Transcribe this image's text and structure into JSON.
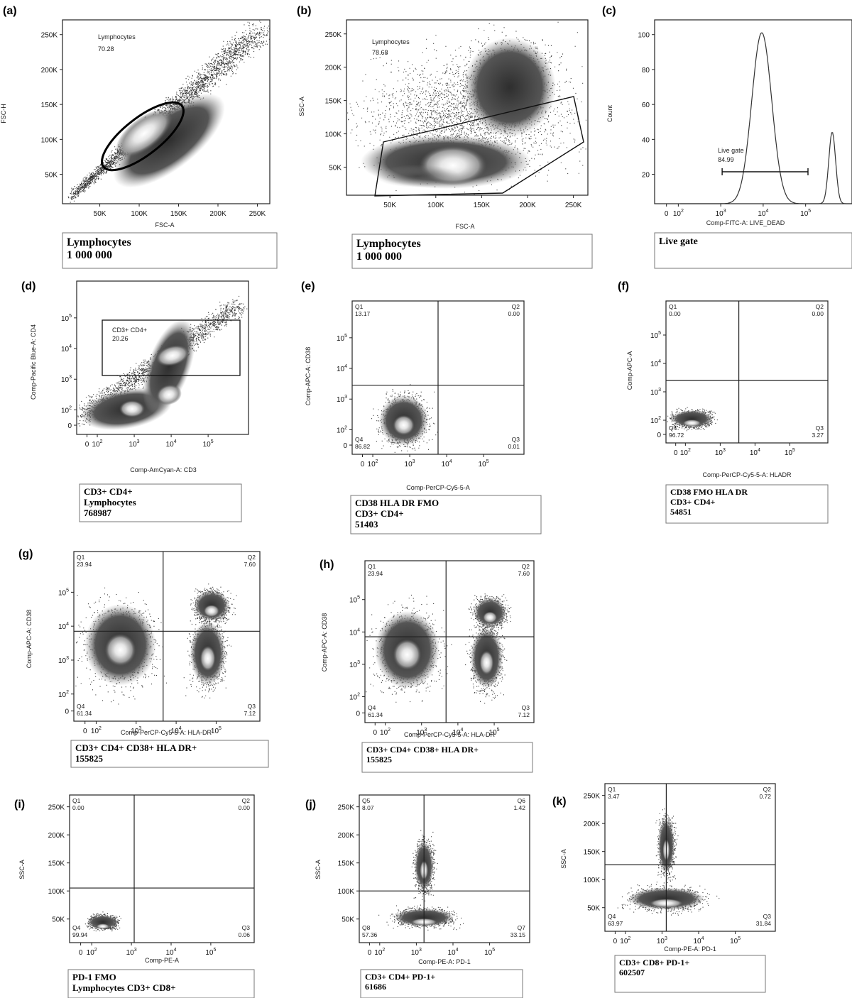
{
  "chart_data": [
    {
      "id": "a",
      "letter": "(a)",
      "type": "scatter",
      "xlabel": "FSC-A",
      "ylabel": "FSC-H",
      "xlim": [
        0,
        262144
      ],
      "ylim": [
        0,
        262144
      ],
      "xticks": [
        "50K",
        "100K",
        "150K",
        "200K",
        "250K"
      ],
      "yticks": [
        "50K",
        "100K",
        "150K",
        "200K",
        "250K"
      ],
      "gate": {
        "kind": "ellipse",
        "name": "Lymphocytes",
        "percent": "70.28"
      },
      "caption": [
        "Lymphocytes",
        "1 000 000"
      ]
    },
    {
      "id": "b",
      "letter": "(b)",
      "type": "scatter",
      "xlabel": "FSC-A",
      "ylabel": "SSC-A",
      "xlim": [
        0,
        262144
      ],
      "ylim": [
        0,
        262144
      ],
      "xticks": [
        "50K",
        "100K",
        "150K",
        "200K",
        "250K"
      ],
      "yticks": [
        "50K",
        "100K",
        "150K",
        "200K",
        "250K"
      ],
      "gate": {
        "kind": "polygon",
        "name": "Lymphocytes",
        "percent": "78.68"
      },
      "caption": [
        "Lymphocytes",
        "1 000 000"
      ]
    },
    {
      "id": "c",
      "letter": "(c)",
      "type": "line",
      "xlabel": "Comp-FITC-A: LIVE_DEAD",
      "ylabel": "Count",
      "ylim": [
        0,
        100
      ],
      "xticks": [
        "0",
        "10^2",
        "10^3",
        "10^4",
        "10^5"
      ],
      "yticks": [
        "20",
        "40",
        "60",
        "80",
        "100"
      ],
      "gate": {
        "kind": "range",
        "name": "Live gate",
        "percent": "84.99"
      },
      "peaks": [
        {
          "x_log": 3.55,
          "y": 93
        },
        {
          "x_log": 5.15,
          "y": 39
        }
      ],
      "caption": [
        "Live gate"
      ]
    },
    {
      "id": "d",
      "letter": "(d)",
      "type": "scatter",
      "xlabel": "Comp-AmCyan-A: CD3",
      "ylabel": "Comp-Pacific Blue-A: CD4",
      "xticks": [
        "0",
        "10^2",
        "10^3",
        "10^4",
        "10^5"
      ],
      "yticks": [
        "0",
        "10^2",
        "10^3",
        "10^4",
        "10^5"
      ],
      "gate": {
        "kind": "rect",
        "name": "CD3+ CD4+",
        "percent": "20.26"
      },
      "caption": [
        "CD3+ CD4+",
        "Lymphocytes",
        "768987"
      ]
    },
    {
      "id": "e",
      "letter": "(e)",
      "type": "scatter",
      "xlabel": "Comp-PerCP-Cy5-5-A",
      "ylabel": "Comp-APC-A: CD38",
      "xticks": [
        "0",
        "10^2",
        "10^3",
        "10^4",
        "10^5"
      ],
      "yticks": [
        "0",
        "10^2",
        "10^3",
        "10^4",
        "10^5"
      ],
      "quadrants": {
        "Q1": "13.17",
        "Q2": "0.00",
        "Q3": "0.01",
        "Q4": "86.82"
      },
      "caption": [
        "CD38 HLA DR FMO",
        "CD3+ CD4+",
        "51403"
      ]
    },
    {
      "id": "f",
      "letter": "(f)",
      "type": "scatter",
      "xlabel": "Comp-PerCP-Cy5-5-A: HLADR",
      "ylabel": "Comp-APC-A",
      "xticks": [
        "0",
        "10^2",
        "10^3",
        "10^4",
        "10^5"
      ],
      "yticks": [
        "0",
        "10^2",
        "10^3",
        "10^4",
        "10^5"
      ],
      "quadrants": {
        "Q1": "0.00",
        "Q2": "0.00",
        "Q3": "3.27",
        "Q4": "96.72"
      },
      "caption": [
        "CD38 FMO HLA DR",
        "CD3+ CD4+",
        "54851"
      ]
    },
    {
      "id": "g",
      "letter": "(g)",
      "type": "scatter",
      "xlabel": "Comp-PerCP-Cy5-5-A: HLA-DR",
      "ylabel": "Comp-APC-A: CD38",
      "xticks": [
        "0",
        "10^2",
        "10^3",
        "10^4",
        "10^5"
      ],
      "yticks": [
        "0",
        "10^2",
        "10^3",
        "10^4",
        "10^5"
      ],
      "quadrants": {
        "Q1": "23.94",
        "Q2": "7.60",
        "Q3": "7.12",
        "Q4": "61.34"
      },
      "caption": [
        "CD3+ CD4+ CD38+ HLA DR+",
        "155825"
      ]
    },
    {
      "id": "h",
      "letter": "(h)",
      "type": "scatter",
      "xlabel": "Comp-PerCP-Cy5-5-A: HLA-DR",
      "ylabel": "Comp-APC-A: CD38",
      "xticks": [
        "0",
        "10^2",
        "10^3",
        "10^4",
        "10^5"
      ],
      "yticks": [
        "0",
        "10^2",
        "10^3",
        "10^4",
        "10^5"
      ],
      "quadrants": {
        "Q1": "23.94",
        "Q2": "7.60",
        "Q3": "7.12",
        "Q4": "61.34"
      },
      "caption": [
        "CD3+ CD4+ CD38+ HLA DR+",
        "155825"
      ]
    },
    {
      "id": "i",
      "letter": "(i)",
      "type": "scatter",
      "xlabel": "Comp-PE-A",
      "ylabel": "SSC-A",
      "xticks": [
        "0",
        "10^2",
        "10^3",
        "10^4",
        "10^5"
      ],
      "yticks": [
        "50K",
        "100K",
        "150K",
        "200K",
        "250K"
      ],
      "quadrants": {
        "Q1": "0.00",
        "Q2": "0.00",
        "Q3": "0.06",
        "Q4": "99.94"
      },
      "caption": [
        "PD-1 FMO",
        "Lymphocytes CD3+ CD8+"
      ]
    },
    {
      "id": "j",
      "letter": "(j)",
      "type": "scatter",
      "xlabel": "Comp-PE-A: PD-1",
      "ylabel": "SSC-A",
      "xticks": [
        "0",
        "10^2",
        "10^3",
        "10^4",
        "10^5"
      ],
      "yticks": [
        "50K",
        "100K",
        "150K",
        "200K",
        "250K"
      ],
      "quadrants": {
        "Q5": "8.07",
        "Q6": "1.42",
        "Q7": "33.15",
        "Q8": "57.36"
      },
      "caption": [
        "CD3+ CD4+ PD-1+",
        "61686"
      ]
    },
    {
      "id": "k",
      "letter": "(k)",
      "type": "scatter",
      "xlabel": "Comp-PE-A: PD-1",
      "ylabel": "SSC-A",
      "xticks": [
        "0",
        "10^2",
        "10^3",
        "10^4",
        "10^5"
      ],
      "yticks": [
        "50K",
        "100K",
        "150K",
        "200K",
        "250K"
      ],
      "quadrants": {
        "Q1": "3.47",
        "Q2": "0.72",
        "Q3": "31.84",
        "Q4": "63.97"
      },
      "caption": [
        "CD3+ CD8+ PD-1+",
        "602507"
      ]
    }
  ]
}
